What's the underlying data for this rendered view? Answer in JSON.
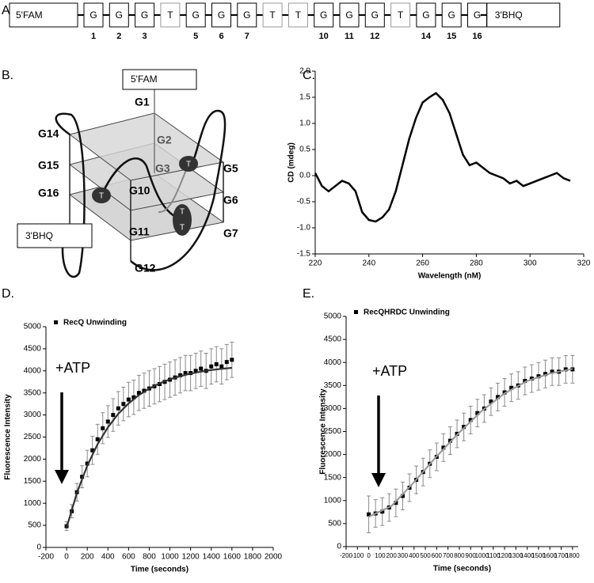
{
  "panel_labels": [
    "A.",
    "B.",
    "C.",
    "D.",
    "E."
  ],
  "sequence": {
    "five_prime": "5'FAM",
    "three_prime": "3'BHQ",
    "bases": [
      {
        "base": "G",
        "number": 1
      },
      {
        "base": "G",
        "number": 2
      },
      {
        "base": "G",
        "number": 3
      },
      {
        "base": "T"
      },
      {
        "base": "G",
        "number": 5
      },
      {
        "base": "G",
        "number": 6
      },
      {
        "base": "G",
        "number": 7
      },
      {
        "base": "T"
      },
      {
        "base": "T"
      },
      {
        "base": "G",
        "number": 10
      },
      {
        "base": "G",
        "number": 11
      },
      {
        "base": "G",
        "number": 12
      },
      {
        "base": "T"
      },
      {
        "base": "G",
        "number": 14
      },
      {
        "base": "G",
        "number": 15
      },
      {
        "base": "G",
        "number": 16
      }
    ]
  },
  "quadruplex": {
    "five_prime": "5'FAM",
    "three_prime": "3'BHQ",
    "labels": [
      "G1",
      "G2",
      "G3",
      "G5",
      "G6",
      "G7",
      "G10",
      "G11",
      "G12",
      "G14",
      "G15",
      "G16"
    ],
    "loops": [
      "T",
      "T",
      "T",
      "T"
    ]
  },
  "chart_data": [
    {
      "type": "line",
      "ylabel": "CD (mdeg)",
      "xlabel": "Wavelength (nM)",
      "color": "#000000",
      "x": [
        220,
        222.5,
        225,
        227.5,
        230,
        232.5,
        235,
        237.5,
        240,
        242.5,
        245,
        247.5,
        250,
        252.5,
        255,
        257.5,
        260,
        262.5,
        265,
        267.5,
        270,
        272.5,
        275,
        277.5,
        280,
        282.5,
        285,
        287.5,
        290,
        292.5,
        295,
        297.5,
        300,
        302.5,
        305,
        307.5,
        310,
        312.5,
        315
      ],
      "values": [
        0.05,
        -0.2,
        -0.3,
        -0.2,
        -0.1,
        -0.15,
        -0.3,
        -0.7,
        -0.85,
        -0.88,
        -0.8,
        -0.65,
        -0.3,
        0.2,
        0.7,
        1.1,
        1.4,
        1.5,
        1.58,
        1.45,
        1.2,
        0.8,
        0.4,
        0.2,
        0.25,
        0.15,
        0.05,
        0.0,
        -0.05,
        -0.15,
        -0.1,
        -0.2,
        -0.15,
        -0.1,
        -0.05,
        0.0,
        0.05,
        -0.05,
        -0.1
      ],
      "xlim": [
        220,
        320
      ],
      "xticks": [
        220,
        240,
        260,
        280,
        300,
        320
      ],
      "ylim": [
        -1.5,
        2.0
      ],
      "yticks": [
        -1.5,
        {
          "value": -1,
          "label": "-1.0"
        },
        -0.5,
        {
          "value": 0,
          "label": "0.0"
        },
        0.5,
        {
          "value": 1,
          "label": "1.0"
        },
        1.5,
        {
          "value": 2,
          "label": "2.0"
        }
      ]
    },
    {
      "type": "scatter",
      "ylabel": "Fluorescence Intensity",
      "xlabel": "Time (seconds)",
      "annotation": "+ATP",
      "legend": "upper left",
      "xlim": [
        -200,
        2000
      ],
      "xticks": [
        -200,
        0,
        200,
        400,
        600,
        800,
        1000,
        1200,
        1400,
        1600,
        1800,
        2000
      ],
      "ylim": [
        0,
        5000
      ],
      "yticks": [
        0,
        500,
        1000,
        1500,
        2000,
        2500,
        3000,
        3500,
        4000,
        4500,
        5000
      ],
      "series": [
        {
          "name": "RecQ Unwinding",
          "color": "#000000",
          "error_color": "#8a8a8a",
          "x": [
            0,
            50,
            100,
            150,
            200,
            250,
            300,
            350,
            400,
            450,
            500,
            550,
            600,
            650,
            700,
            750,
            800,
            850,
            900,
            950,
            1000,
            1050,
            1100,
            1150,
            1200,
            1250,
            1300,
            1350,
            1400,
            1450,
            1500,
            1550,
            1600
          ],
          "values": [
            480,
            820,
            1250,
            1600,
            1900,
            2200,
            2450,
            2700,
            2850,
            3000,
            3150,
            3250,
            3350,
            3400,
            3500,
            3550,
            3600,
            3650,
            3700,
            3750,
            3800,
            3850,
            3900,
            3950,
            3950,
            4000,
            4050,
            4000,
            4100,
            4150,
            4100,
            4200,
            4250
          ],
          "errors": [
            100,
            150,
            200,
            250,
            300,
            320,
            340,
            350,
            360,
            370,
            380,
            380,
            390,
            390,
            400,
            400,
            400,
            400,
            400,
            400,
            400,
            400,
            400,
            400,
            400,
            400,
            400,
            400,
            400,
            400,
            400,
            400,
            400
          ]
        },
        {
          "color": "#333333",
          "x": [
            0,
            100,
            200,
            300,
            400,
            500,
            600,
            700,
            800,
            900,
            1000,
            1100,
            1200,
            1300,
            1400,
            1500,
            1600
          ],
          "values": [
            450,
            1234,
            1852,
            2337,
            2722,
            3025,
            3262,
            3451,
            3599,
            3717,
            3808,
            3880,
            3937,
            3982,
            4018,
            4046,
            4068
          ]
        }
      ]
    },
    {
      "type": "scatter",
      "ylabel": "Fluorescence Intensity",
      "xlabel": "Time (seconds)",
      "annotation": "+ATP",
      "legend": "upper left",
      "xlim": [
        -200,
        1850
      ],
      "xticks": [
        -200,
        -100,
        0,
        100,
        200,
        300,
        400,
        500,
        600,
        700,
        800,
        900,
        1000,
        1100,
        1200,
        1300,
        1400,
        1500,
        1600,
        1700,
        1800
      ],
      "ylim": [
        0,
        5000
      ],
      "yticks": [
        0,
        500,
        1000,
        1500,
        2000,
        2500,
        3000,
        3500,
        4000,
        4500,
        5000
      ],
      "series": [
        {
          "name": "RecQHRDC Unwinding",
          "color": "#000000",
          "error_color": "#8a8a8a",
          "x": [
            0,
            60,
            120,
            180,
            240,
            300,
            360,
            420,
            480,
            540,
            600,
            660,
            720,
            780,
            840,
            900,
            960,
            1020,
            1080,
            1140,
            1200,
            1260,
            1320,
            1380,
            1440,
            1500,
            1560,
            1620,
            1680,
            1740,
            1800
          ],
          "values": [
            700,
            720,
            760,
            850,
            950,
            1100,
            1280,
            1450,
            1620,
            1800,
            1950,
            2150,
            2300,
            2450,
            2600,
            2750,
            2900,
            3000,
            3150,
            3250,
            3350,
            3450,
            3500,
            3600,
            3650,
            3700,
            3750,
            3800,
            3800,
            3850,
            3850
          ],
          "errors": [
            400,
            300,
            300,
            300,
            300,
            300,
            300,
            300,
            300,
            300,
            300,
            300,
            300,
            300,
            300,
            300,
            300,
            300,
            300,
            300,
            300,
            300,
            300,
            300,
            300,
            300,
            300,
            300,
            300,
            300,
            300
          ]
        },
        {
          "color": "#9a9a9a",
          "x": [
            0,
            200,
            400,
            600,
            800,
            1000,
            1200,
            1400,
            1600,
            1800
          ],
          "values": [
            650,
            880,
            1400,
            1960,
            2480,
            2950,
            3330,
            3600,
            3760,
            3860
          ]
        }
      ]
    }
  ]
}
